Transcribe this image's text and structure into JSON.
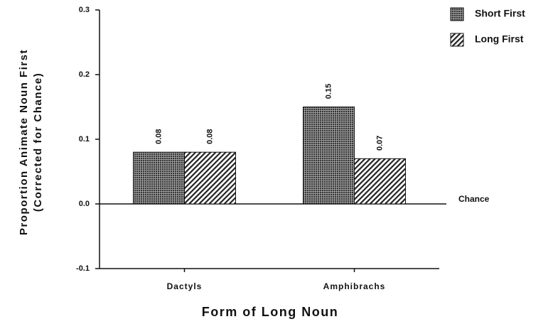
{
  "chart_data": {
    "type": "bar",
    "y_label": [
      "Proportion Animate Noun First",
      "(Corrected for Chance)"
    ],
    "x_label": "Form of Long Noun",
    "annotation": "Chance",
    "categories": [
      "Dactyls",
      "Amphibrachs"
    ],
    "series": [
      {
        "name": "Short First",
        "color": "#333333",
        "pattern": "crosshatch",
        "values": [
          0.08,
          0.15
        ]
      },
      {
        "name": "Long First",
        "color": "#222222",
        "pattern": "diagonal",
        "values": [
          0.08,
          0.07
        ]
      }
    ],
    "ylim": [
      -0.1,
      0.3
    ],
    "yticks": [
      -0.1,
      {
        "value": 0,
        "label": "0.0"
      },
      0.1,
      0.2,
      0.3
    ],
    "legend": "top-right",
    "grid": false
  }
}
